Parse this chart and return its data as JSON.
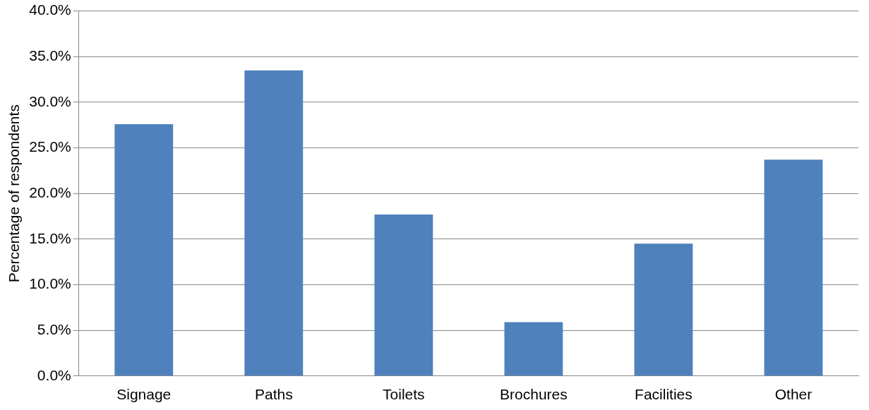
{
  "chart_data": {
    "type": "bar",
    "ylabel": "Percentage of respondents",
    "categories": [
      "Signage",
      "Paths",
      "Toilets",
      "Brochures",
      "Facilities",
      "Other"
    ],
    "values": [
      27.6,
      33.5,
      17.7,
      5.9,
      14.5,
      23.7
    ],
    "color": "#4f81bd",
    "ylim": [
      0,
      40
    ],
    "yticks": [
      {
        "value": 0,
        "label": "0.0%"
      },
      {
        "value": 5,
        "label": "5.0%"
      },
      {
        "value": 10,
        "label": "10.0%"
      },
      {
        "value": 15,
        "label": "15.0%"
      },
      {
        "value": 20,
        "label": "20.0%"
      },
      {
        "value": 25,
        "label": "25.0%"
      },
      {
        "value": 30,
        "label": "30.0%"
      },
      {
        "value": 35,
        "label": "35.0%"
      },
      {
        "value": 40,
        "label": "40.0%"
      }
    ],
    "grid": "y"
  }
}
